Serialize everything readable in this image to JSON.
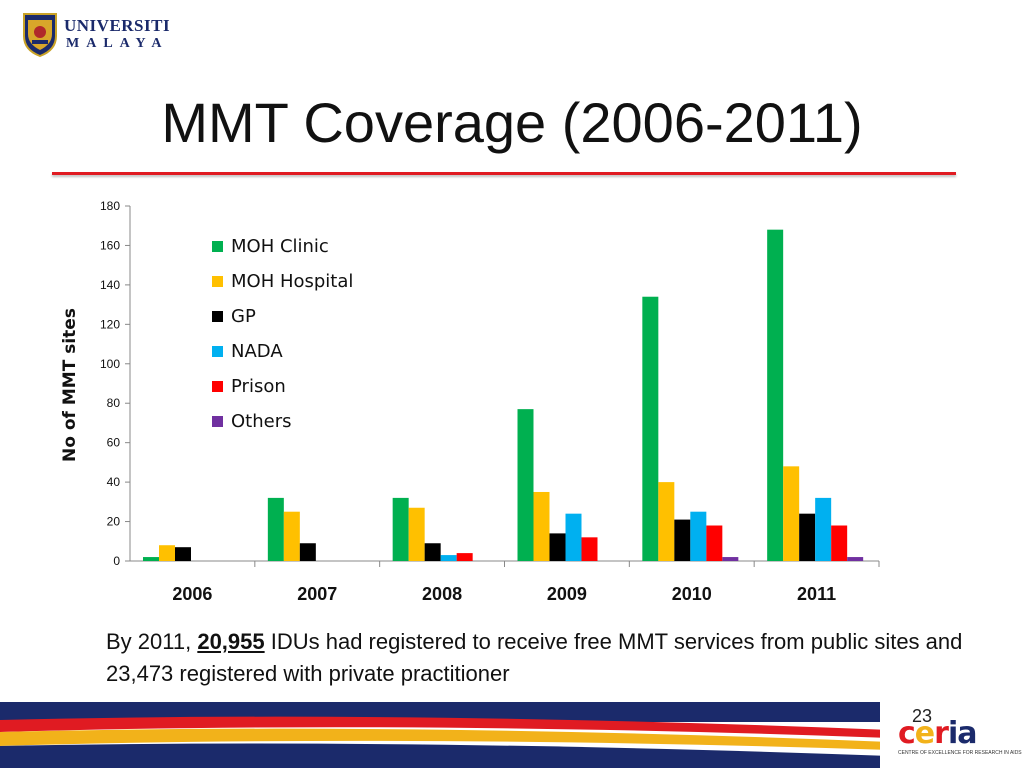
{
  "header": {
    "logo_line1": "UNIVERSITI",
    "logo_line2": "MALAYA",
    "title": "MMT Coverage (2006-2011)"
  },
  "chart_data": {
    "type": "bar",
    "categories": [
      "2006",
      "2007",
      "2008",
      "2009",
      "2010",
      "2011"
    ],
    "series": [
      {
        "name": "MOH Clinic",
        "color": "#00b050",
        "values": [
          2,
          32,
          32,
          77,
          134,
          168
        ]
      },
      {
        "name": "MOH Hospital",
        "color": "#ffc000",
        "values": [
          8,
          25,
          27,
          35,
          40,
          48
        ]
      },
      {
        "name": "GP",
        "color": "#000000",
        "values": [
          7,
          9,
          9,
          14,
          21,
          24
        ]
      },
      {
        "name": "NADA",
        "color": "#00b0f0",
        "values": [
          0,
          0,
          3,
          24,
          25,
          32
        ]
      },
      {
        "name": "Prison",
        "color": "#ff0000",
        "values": [
          0,
          0,
          4,
          12,
          18,
          18
        ]
      },
      {
        "name": "Others",
        "color": "#7030a0",
        "values": [
          0,
          0,
          0,
          0,
          2,
          2
        ]
      }
    ],
    "ylabel": "No of MMT sites",
    "xlabel": "",
    "ylim": [
      0,
      180
    ],
    "yticks": [
      "0",
      "20",
      "40",
      "60",
      "80",
      "100",
      "120",
      "140",
      "160",
      "180"
    ],
    "legend_position": "top-left",
    "grid": false
  },
  "caption": {
    "prefix": "By 2011, ",
    "number": "20,955",
    "rest": " IDUs had registered to receive free MMT services from public sites and 23,473 registered with private practitioner"
  },
  "footer": {
    "page_number": "23",
    "ceria_logo": "ceria",
    "ceria_subtitle": "CENTRE OF EXCELLENCE FOR RESEARCH IN AIDS"
  }
}
